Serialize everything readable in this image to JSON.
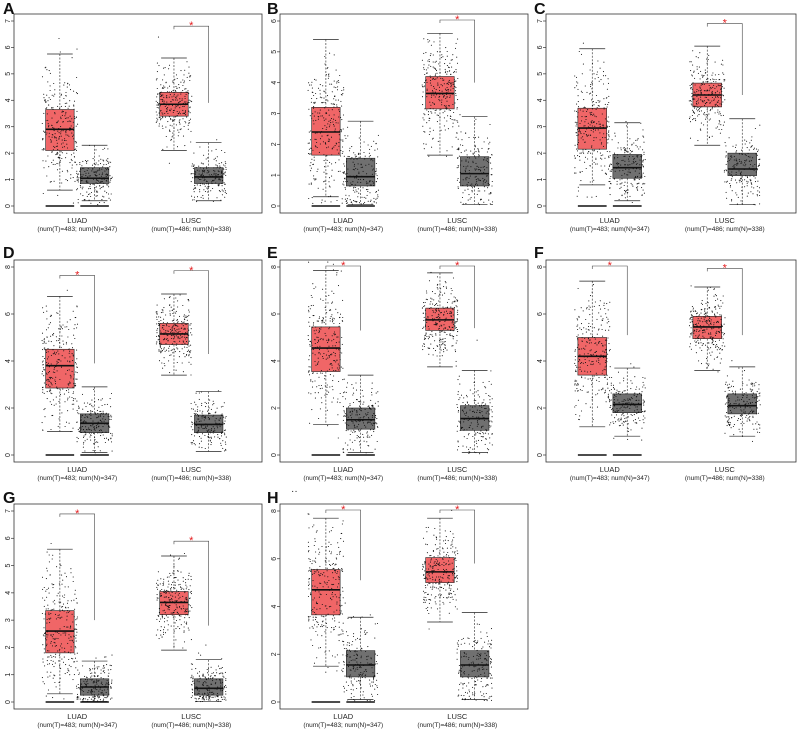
{
  "figure": {
    "extra_mark": "··",
    "tumor_color": "#f06667",
    "normal_color": "#707070",
    "sig_color": "#e41a1c"
  },
  "chart_data": [
    {
      "panel": "A",
      "type": "box",
      "ylim": [
        0,
        7
      ],
      "yticks": [
        0,
        1,
        2,
        3,
        4,
        5,
        6,
        7
      ],
      "categories": [
        "LUAD",
        "LUSC"
      ],
      "sublabels": [
        "(num(T)=483; num(N)=347)",
        "(num(T)=486; num(N)=338)"
      ],
      "series": [
        {
          "group": "tumor",
          "values": [
            {
              "q1": 2.1,
              "median": 2.9,
              "q3": 3.65,
              "whislo": 0.6,
              "whishi": 5.75,
              "ymin": 0.1,
              "ymax": 6.6
            },
            {
              "q1": 3.4,
              "median": 3.85,
              "q3": 4.3,
              "whislo": 2.1,
              "whishi": 5.6,
              "ymin": 1.6,
              "ymax": 6.5
            }
          ]
        },
        {
          "group": "normal",
          "values": [
            {
              "q1": 0.85,
              "median": 1.05,
              "q3": 1.45,
              "whislo": 0.2,
              "whishi": 2.3,
              "ymin": 0.05,
              "ymax": 3.0
            },
            {
              "q1": 0.85,
              "median": 1.1,
              "q3": 1.45,
              "whislo": 0.2,
              "whishi": 2.4,
              "ymin": 0.05,
              "ymax": 3.9
            }
          ]
        }
      ],
      "significant": [
        false,
        true
      ],
      "significance_mark": "*"
    },
    {
      "panel": "B",
      "type": "box",
      "ylim": [
        0,
        6
      ],
      "yticks": [
        0,
        1,
        2,
        3,
        4,
        5,
        6
      ],
      "categories": [
        "LUAD",
        "LUSC"
      ],
      "sublabels": [
        "(num(T)=483; num(N)=347)",
        "(num(T)=486; num(N)=338)"
      ],
      "series": [
        {
          "group": "tumor",
          "values": [
            {
              "q1": 1.65,
              "median": 2.4,
              "q3": 3.2,
              "whislo": 0.3,
              "whishi": 5.4,
              "ymin": 0.05,
              "ymax": 5.7
            },
            {
              "q1": 3.15,
              "median": 3.65,
              "q3": 4.2,
              "whislo": 1.65,
              "whishi": 5.6,
              "ymin": 0.5,
              "ymax": 5.9
            }
          ]
        },
        {
          "group": "normal",
          "values": [
            {
              "q1": 0.65,
              "median": 0.95,
              "q3": 1.55,
              "whislo": 0.05,
              "whishi": 2.75,
              "ymin": 0.02,
              "ymax": 3.9
            },
            {
              "q1": 0.65,
              "median": 1.05,
              "q3": 1.6,
              "whislo": 0.05,
              "whishi": 2.9,
              "ymin": 0.02,
              "ymax": 4.0
            }
          ]
        }
      ],
      "significant": [
        false,
        true
      ],
      "significance_mark": "*"
    },
    {
      "panel": "C",
      "type": "box",
      "ylim": [
        0,
        7
      ],
      "yticks": [
        0,
        1,
        2,
        3,
        4,
        5,
        6,
        7
      ],
      "categories": [
        "LUAD",
        "LUSC"
      ],
      "sublabels": [
        "(num(T)=483; num(N)=347)",
        "(num(T)=486; num(N)=338)"
      ],
      "series": [
        {
          "group": "tumor",
          "values": [
            {
              "q1": 2.15,
              "median": 2.95,
              "q3": 3.7,
              "whislo": 0.8,
              "whishi": 5.95,
              "ymin": 0.3,
              "ymax": 6.4
            },
            {
              "q1": 3.75,
              "median": 4.2,
              "q3": 4.65,
              "whislo": 2.3,
              "whishi": 6.05,
              "ymin": 1.0,
              "ymax": 6.6
            }
          ]
        },
        {
          "group": "normal",
          "values": [
            {
              "q1": 1.05,
              "median": 1.45,
              "q3": 1.95,
              "whislo": 0.2,
              "whishi": 3.15,
              "ymin": 0.05,
              "ymax": 4.1
            },
            {
              "q1": 1.15,
              "median": 1.4,
              "q3": 2.0,
              "whislo": 0.05,
              "whishi": 3.3,
              "ymin": 0.02,
              "ymax": 4.2
            }
          ]
        }
      ],
      "significant": [
        false,
        true
      ],
      "significance_mark": "*"
    },
    {
      "panel": "D",
      "type": "box",
      "ylim": [
        0,
        8
      ],
      "yticks": [
        0,
        2,
        4,
        6,
        8
      ],
      "categories": [
        "LUAD",
        "LUSC"
      ],
      "sublabels": [
        "(num(T)=483; num(N)=347)",
        "(num(T)=486; num(N)=338)"
      ],
      "series": [
        {
          "group": "tumor",
          "values": [
            {
              "q1": 2.85,
              "median": 3.8,
              "q3": 4.5,
              "whislo": 1.0,
              "whishi": 6.75,
              "ymin": 0.9,
              "ymax": 7.3
            },
            {
              "q1": 4.7,
              "median": 5.15,
              "q3": 5.6,
              "whislo": 3.4,
              "whishi": 6.85,
              "ymin": 1.2,
              "ymax": 7.5
            }
          ]
        },
        {
          "group": "normal",
          "values": [
            {
              "q1": 0.95,
              "median": 1.35,
              "q3": 1.75,
              "whislo": 0.1,
              "whishi": 2.9,
              "ymin": 0.05,
              "ymax": 3.9
            },
            {
              "q1": 0.95,
              "median": 1.3,
              "q3": 1.7,
              "whislo": 0.15,
              "whishi": 2.7,
              "ymin": 0.05,
              "ymax": 4.3
            }
          ]
        }
      ],
      "significant": [
        true,
        true
      ],
      "significance_mark": "*"
    },
    {
      "panel": "E",
      "type": "box",
      "ylim": [
        0,
        8
      ],
      "yticks": [
        0,
        2,
        4,
        6,
        8
      ],
      "categories": [
        "LUAD",
        "LUSC"
      ],
      "sublabels": [
        "(num(T)=483; num(N)=347)",
        "(num(T)=486; num(N)=338)"
      ],
      "series": [
        {
          "group": "tumor",
          "values": [
            {
              "q1": 3.55,
              "median": 4.55,
              "q3": 5.45,
              "whislo": 1.3,
              "whishi": 7.85,
              "ymin": 0.6,
              "ymax": 8.3
            },
            {
              "q1": 5.3,
              "median": 5.75,
              "q3": 6.25,
              "whislo": 3.75,
              "whishi": 7.75,
              "ymin": 1.4,
              "ymax": 8.4
            }
          ]
        },
        {
          "group": "normal",
          "values": [
            {
              "q1": 1.1,
              "median": 1.5,
              "q3": 2.0,
              "whislo": 0.1,
              "whishi": 3.4,
              "ymin": 0.05,
              "ymax": 5.3
            },
            {
              "q1": 1.05,
              "median": 1.55,
              "q3": 2.1,
              "whislo": 0.1,
              "whishi": 3.6,
              "ymin": 0.05,
              "ymax": 5.4
            }
          ]
        }
      ],
      "significant": [
        true,
        true
      ],
      "significance_mark": "*"
    },
    {
      "panel": "F",
      "type": "box",
      "ylim": [
        0,
        8
      ],
      "yticks": [
        0,
        2,
        4,
        6,
        8
      ],
      "categories": [
        "LUAD",
        "LUSC"
      ],
      "sublabels": [
        "(num(T)=483; num(N)=347)",
        "(num(T)=486; num(N)=338)"
      ],
      "series": [
        {
          "group": "tumor",
          "values": [
            {
              "q1": 3.4,
              "median": 4.2,
              "q3": 5.0,
              "whislo": 1.2,
              "whishi": 7.4,
              "ymin": 0.8,
              "ymax": 7.8
            },
            {
              "q1": 4.95,
              "median": 5.45,
              "q3": 5.9,
              "whislo": 3.6,
              "whishi": 7.15,
              "ymin": 2.0,
              "ymax": 7.6
            }
          ]
        },
        {
          "group": "normal",
          "values": [
            {
              "q1": 1.8,
              "median": 2.15,
              "q3": 2.6,
              "whislo": 0.8,
              "whishi": 3.7,
              "ymin": 0.6,
              "ymax": 5.1
            },
            {
              "q1": 1.75,
              "median": 2.1,
              "q3": 2.6,
              "whislo": 0.8,
              "whishi": 3.75,
              "ymin": 0.05,
              "ymax": 5.1
            }
          ]
        }
      ],
      "significant": [
        true,
        true
      ],
      "significance_mark": "*"
    },
    {
      "panel": "G",
      "type": "box",
      "ylim": [
        0,
        7
      ],
      "yticks": [
        0,
        1,
        2,
        3,
        4,
        5,
        6,
        7
      ],
      "categories": [
        "LUAD",
        "LUSC"
      ],
      "sublabels": [
        "(num(T)=483; num(N)=347)",
        "(num(T)=486; num(N)=338)"
      ],
      "series": [
        {
          "group": "tumor",
          "values": [
            {
              "q1": 1.8,
              "median": 2.6,
              "q3": 3.35,
              "whislo": 0.3,
              "whishi": 5.6,
              "ymin": 0.05,
              "ymax": 6.6
            },
            {
              "q1": 3.2,
              "median": 3.65,
              "q3": 4.05,
              "whislo": 1.9,
              "whishi": 5.35,
              "ymin": 0.4,
              "ymax": 5.6
            }
          ]
        },
        {
          "group": "normal",
          "values": [
            {
              "q1": 0.25,
              "median": 0.55,
              "q3": 0.85,
              "whislo": 0.02,
              "whishi": 1.5,
              "ymin": 0.01,
              "ymax": 3.0
            },
            {
              "q1": 0.25,
              "median": 0.5,
              "q3": 0.85,
              "whislo": 0.02,
              "whishi": 1.55,
              "ymin": 0.01,
              "ymax": 2.8
            }
          ]
        }
      ],
      "significant": [
        true,
        true
      ],
      "significance_mark": "*"
    },
    {
      "panel": "H",
      "type": "box",
      "ylim": [
        0,
        8
      ],
      "yticks": [
        0,
        2,
        4,
        6,
        8
      ],
      "categories": [
        "LUAD",
        "LUSC"
      ],
      "sublabels": [
        "(num(T)=483; num(N)=347)",
        "(num(T)=486; num(N)=338)"
      ],
      "series": [
        {
          "group": "tumor",
          "values": [
            {
              "q1": 3.65,
              "median": 4.7,
              "q3": 5.55,
              "whislo": 1.5,
              "whishi": 7.7,
              "ymin": 1.2,
              "ymax": 8.0
            },
            {
              "q1": 5.0,
              "median": 5.45,
              "q3": 6.05,
              "whislo": 3.35,
              "whishi": 7.7,
              "ymin": 1.1,
              "ymax": 8.6
            }
          ]
        },
        {
          "group": "normal",
          "values": [
            {
              "q1": 1.05,
              "median": 1.55,
              "q3": 2.15,
              "whislo": 0.1,
              "whishi": 3.55,
              "ymin": 0.05,
              "ymax": 5.1
            },
            {
              "q1": 1.05,
              "median": 1.55,
              "q3": 2.15,
              "whislo": 0.1,
              "whishi": 3.75,
              "ymin": 0.05,
              "ymax": 5.8
            }
          ]
        }
      ],
      "significant": [
        true,
        true
      ],
      "significance_mark": "*"
    }
  ]
}
